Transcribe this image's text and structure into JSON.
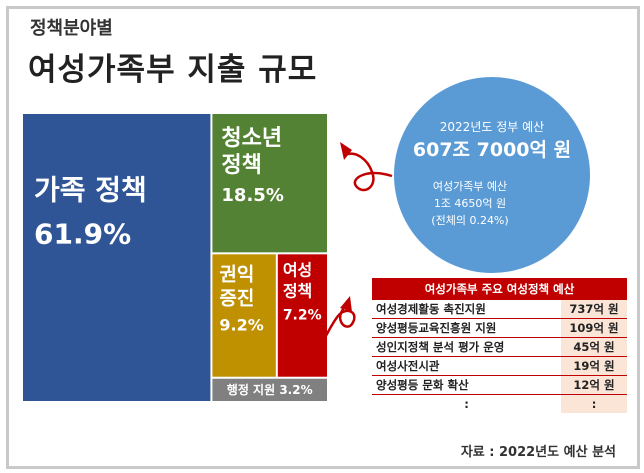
{
  "header": {
    "subtitle": "정책분야별",
    "title": "여성가족부 지출 규모"
  },
  "chart_data": {
    "type": "treemap",
    "items": [
      {
        "name_lines": [
          "가족 정책"
        ],
        "value_label": "61.9%",
        "value": 61.9,
        "color": "#2f5597"
      },
      {
        "name_lines": [
          "청소년",
          "정책"
        ],
        "value_label": "18.5%",
        "value": 18.5,
        "color": "#548235"
      },
      {
        "name_lines": [
          "권익",
          "증진"
        ],
        "value_label": "9.2%",
        "value": 9.2,
        "color": "#bf9000"
      },
      {
        "name_lines": [
          "여성",
          "정책"
        ],
        "value_label": "7.2%",
        "value": 7.2,
        "color": "#c00000"
      },
      {
        "name_lines": [
          "행정 지원 3.2%"
        ],
        "value_label": "",
        "value": 3.2,
        "color": "#808080"
      }
    ]
  },
  "budget_circle": {
    "gov_label": "2022년도 정부 예산",
    "gov_amount": "607조 7000억 원",
    "mogef_label": "여성가족부 예산",
    "mogef_amount": "1조 4650억 원",
    "share": "(전체의 0.24%)",
    "color": "#5b9bd5"
  },
  "policy_table": {
    "header": "여성가족부 주요 여성정책 예산",
    "rows": [
      {
        "name": "여성경제활동 촉진지원",
        "amount": "737억 원"
      },
      {
        "name": "양성평등교육진흥원 지원",
        "amount": "109억 원"
      },
      {
        "name": "성인지정책 분석 평가 운영",
        "amount": "45억 원"
      },
      {
        "name": "여성사전시관",
        "amount": "19억 원"
      },
      {
        "name": "양성평등 문화 확산",
        "amount": "12억 원"
      },
      {
        "name": ":",
        "amount": ":"
      }
    ]
  },
  "source": "자료 : 2022년도 예산 분석"
}
